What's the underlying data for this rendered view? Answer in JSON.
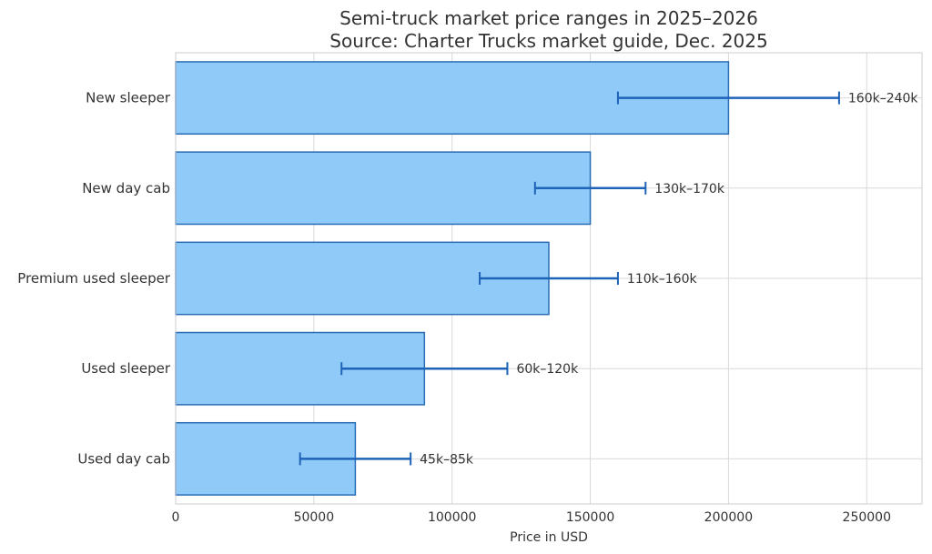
{
  "chart_data": {
    "type": "bar",
    "orientation": "horizontal",
    "title": "Semi-truck market price ranges in 2025–2026",
    "subtitle": "Source: Charter Trucks market guide, Dec. 2025",
    "xlabel": "Price in USD",
    "ylabel": "",
    "xlim": [
      0,
      270000
    ],
    "xticks": [
      0,
      50000,
      100000,
      150000,
      200000,
      250000
    ],
    "grid": true,
    "colors": {
      "bar_fill": "#90caf9",
      "bar_edge": "#2a6db5",
      "error": "#1e63b8"
    },
    "categories": [
      "New sleeper",
      "New day cab",
      "Premium used sleeper",
      "Used sleeper",
      "Used day cab"
    ],
    "values": [
      200000,
      150000,
      135000,
      90000,
      65000
    ],
    "ranges": [
      {
        "low": 160000,
        "high": 240000,
        "label": "160k–240k"
      },
      {
        "low": 130000,
        "high": 170000,
        "label": "130k–170k"
      },
      {
        "low": 110000,
        "high": 160000,
        "label": "110k–160k"
      },
      {
        "low": 60000,
        "high": 120000,
        "label": "60k–120k"
      },
      {
        "low": 45000,
        "high": 85000,
        "label": "45k–85k"
      }
    ]
  }
}
